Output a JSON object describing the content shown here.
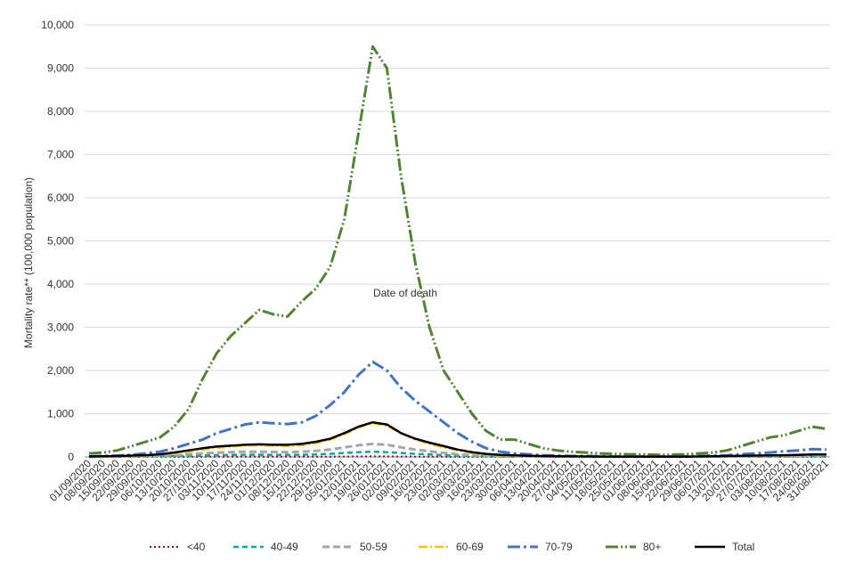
{
  "chart_data": {
    "type": "line",
    "y_label": "Mortality rate** (100,000 population)",
    "x_label": "Date of death",
    "categories": [
      "01/09/2020",
      "08/09/2020",
      "15/09/2020",
      "22/09/2020",
      "29/09/2020",
      "06/10/2020",
      "13/10/2020",
      "20/10/2020",
      "27/10/2020",
      "03/11/2020",
      "10/11/2020",
      "17/11/2020",
      "24/11/2020",
      "01/12/2020",
      "08/12/2020",
      "15/12/2020",
      "22/12/2020",
      "29/12/2020",
      "05/01/2021",
      "12/01/2021",
      "19/01/2021",
      "26/01/2021",
      "02/02/2021",
      "09/02/2021",
      "16/02/2021",
      "23/02/2021",
      "02/03/2021",
      "09/03/2021",
      "16/03/2021",
      "23/03/2021",
      "30/03/2021",
      "06/04/2021",
      "13/04/2021",
      "20/04/2021",
      "27/04/2021",
      "04/05/2021",
      "11/05/2021",
      "18/05/2021",
      "25/05/2021",
      "01/06/2021",
      "08/06/2021",
      "15/06/2021",
      "22/06/2021",
      "29/06/2021",
      "06/07/2021",
      "13/07/2021",
      "20/07/2021",
      "27/07/2021",
      "03/08/2021",
      "10/08/2021",
      "17/08/2021",
      "24/08/2021",
      "31/08/2021"
    ],
    "series": [
      {
        "name": "<40",
        "color": "#8b0a3c",
        "values": [
          1,
          1,
          1,
          1,
          1,
          2,
          2,
          3,
          4,
          4,
          5,
          5,
          5,
          5,
          5,
          5,
          6,
          7,
          8,
          10,
          12,
          11,
          9,
          7,
          5,
          4,
          3,
          2,
          2,
          1,
          1,
          1,
          1,
          1,
          1,
          1,
          1,
          1,
          1,
          1,
          1,
          1,
          1,
          1,
          1,
          1,
          1,
          1,
          2,
          2,
          2,
          2,
          2
        ]
      },
      {
        "name": "40-49",
        "color": "#00a99d",
        "values": [
          2,
          3,
          4,
          6,
          8,
          12,
          18,
          25,
          35,
          40,
          45,
          50,
          50,
          48,
          46,
          50,
          58,
          70,
          90,
          110,
          120,
          110,
          90,
          70,
          55,
          40,
          28,
          18,
          12,
          8,
          5,
          4,
          3,
          3,
          2,
          2,
          2,
          2,
          2,
          2,
          2,
          2,
          2,
          3,
          4,
          5,
          6,
          7,
          8,
          9,
          10,
          12,
          12
        ]
      },
      {
        "name": "50-59",
        "color": "#a6a6a6",
        "values": [
          3,
          5,
          8,
          12,
          18,
          25,
          40,
          60,
          80,
          100,
          110,
          120,
          120,
          115,
          110,
          120,
          140,
          170,
          220,
          270,
          300,
          280,
          220,
          170,
          130,
          90,
          60,
          40,
          25,
          15,
          10,
          8,
          6,
          5,
          4,
          3,
          3,
          3,
          3,
          3,
          3,
          3,
          3,
          5,
          8,
          10,
          12,
          15,
          18,
          20,
          22,
          25,
          25
        ]
      },
      {
        "name": "60-69",
        "color": "#ffc000",
        "values": [
          5,
          8,
          12,
          20,
          30,
          50,
          80,
          120,
          170,
          210,
          240,
          260,
          270,
          260,
          250,
          270,
          320,
          400,
          520,
          680,
          780,
          720,
          550,
          400,
          300,
          220,
          150,
          90,
          55,
          35,
          25,
          18,
          12,
          10,
          8,
          6,
          5,
          4,
          4,
          4,
          4,
          4,
          5,
          7,
          10,
          15,
          20,
          25,
          30,
          35,
          40,
          45,
          45
        ]
      },
      {
        "name": "70-79",
        "color": "#4472c4",
        "values": [
          10,
          20,
          30,
          50,
          80,
          120,
          200,
          300,
          400,
          550,
          650,
          750,
          800,
          780,
          760,
          800,
          950,
          1200,
          1500,
          1900,
          2200,
          2000,
          1600,
          1300,
          1050,
          800,
          550,
          350,
          200,
          120,
          80,
          60,
          40,
          30,
          20,
          20,
          15,
          10,
          10,
          10,
          10,
          10,
          15,
          20,
          30,
          40,
          60,
          80,
          100,
          130,
          150,
          180,
          170
        ]
      },
      {
        "name": "80+",
        "color": "#548235",
        "values": [
          80,
          100,
          150,
          250,
          350,
          450,
          700,
          1100,
          1800,
          2400,
          2800,
          3100,
          3400,
          3300,
          3250,
          3600,
          3900,
          4400,
          5500,
          7500,
          9500,
          9000,
          6500,
          4500,
          3000,
          2000,
          1500,
          1000,
          600,
          400,
          400,
          300,
          200,
          150,
          120,
          100,
          80,
          70,
          60,
          60,
          50,
          50,
          60,
          80,
          100,
          150,
          250,
          350,
          450,
          500,
          600,
          700,
          650
        ]
      },
      {
        "name": "Total",
        "color": "#000000",
        "values": [
          10,
          15,
          20,
          30,
          40,
          60,
          100,
          150,
          200,
          240,
          260,
          280,
          290,
          280,
          280,
          300,
          350,
          420,
          550,
          700,
          800,
          750,
          550,
          420,
          330,
          250,
          170,
          110,
          70,
          45,
          35,
          25,
          20,
          15,
          12,
          10,
          8,
          7,
          6,
          6,
          6,
          6,
          7,
          10,
          15,
          20,
          25,
          30,
          35,
          40,
          45,
          55,
          55
        ]
      }
    ],
    "ylim": [
      0,
      10000
    ],
    "yticks": [
      0,
      {
        "value": 1000,
        "label": "1,000"
      },
      {
        "value": 2000,
        "label": "2,000"
      },
      {
        "value": 3000,
        "label": "3,000"
      },
      {
        "value": 4000,
        "label": "4,000"
      },
      {
        "value": 5000,
        "label": "5,000"
      },
      {
        "value": 6000,
        "label": "6,000"
      },
      {
        "value": 7000,
        "label": "7,000"
      },
      {
        "value": 8000,
        "label": "8,000"
      },
      {
        "value": 9000,
        "label": "9,000"
      },
      {
        "value": 10000,
        "label": "10,000"
      }
    ],
    "grid": true,
    "legend": "bottom"
  }
}
